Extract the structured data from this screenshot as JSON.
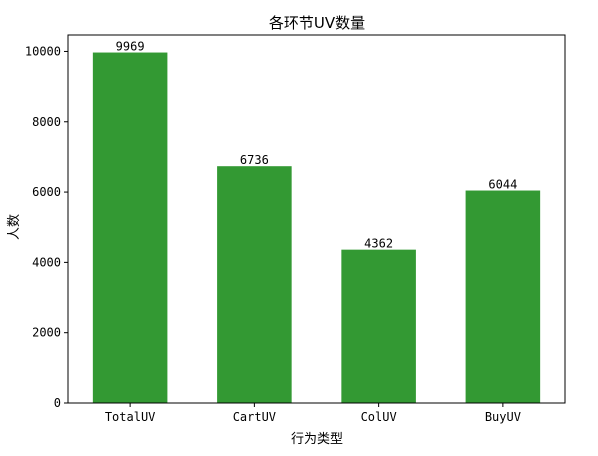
{
  "chart_data": {
    "type": "bar",
    "title": "各环节UV数量",
    "xlabel": "行为类型",
    "ylabel": "人数",
    "categories": [
      "TotalUV",
      "CartUV",
      "ColUV",
      "BuyUV"
    ],
    "values": [
      9969,
      6736,
      4362,
      6044
    ],
    "data_labels": [
      "9969",
      "6736",
      "4362",
      "6044"
    ],
    "ylim": [
      0,
      10468
    ],
    "yticks": [
      0,
      2000,
      4000,
      6000,
      8000,
      10000
    ],
    "ytick_labels": [
      "0",
      "2000",
      "4000",
      "6000",
      "8000",
      "10000"
    ],
    "bar_color": "#339933",
    "grid": false
  }
}
